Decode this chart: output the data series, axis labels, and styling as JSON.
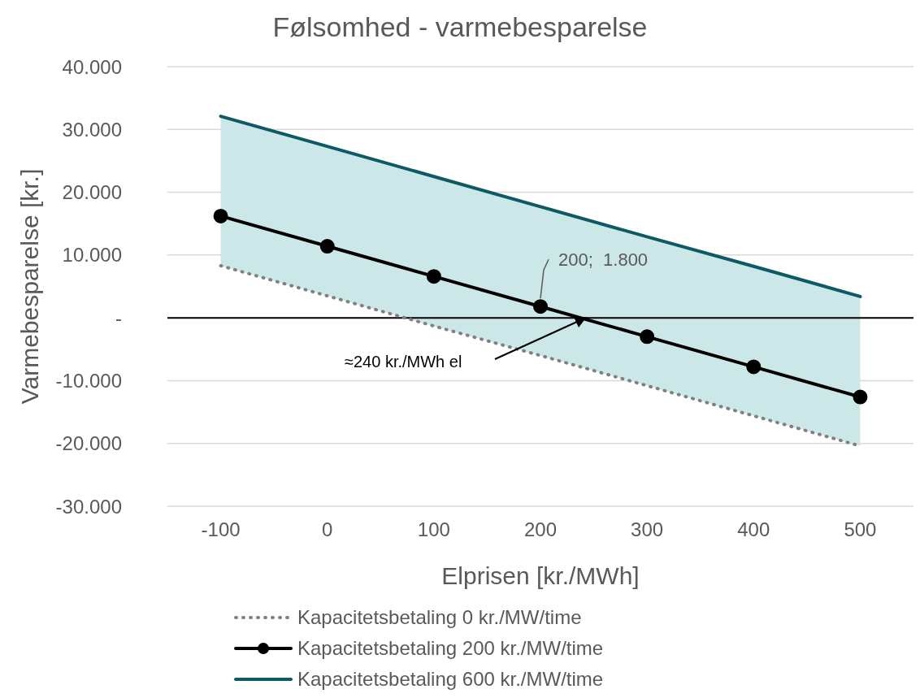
{
  "chart_data": {
    "type": "line",
    "title": "Følsomhed - varmebesparelse",
    "xlabel": "Elprisen [kr./MWh]",
    "ylabel": "Varmebesparelse [kr.]",
    "categories": [
      "-100",
      "0",
      "100",
      "200",
      "300",
      "400",
      "500"
    ],
    "series": [
      {
        "name": "Kapacitetsbetaling 0 kr./MW/time",
        "color": "#808080",
        "line_style": "dotted",
        "marker": "none",
        "values": [
          8300,
          3500,
          -1300,
          -6000,
          -10800,
          -15600,
          -20400
        ]
      },
      {
        "name": "Kapacitetsbetaling 200 kr./MW/time",
        "color": "#000000",
        "line_style": "solid",
        "marker": "circle",
        "values": [
          16200,
          11400,
          6600,
          1800,
          -3000,
          -7800,
          -12600
        ],
        "lower": [
          8300,
          3500,
          -1300,
          -6000,
          -10800,
          -15600,
          -20400
        ],
        "upper": [
          32100,
          27300,
          22500,
          17700,
          12900,
          8200,
          3400
        ]
      },
      {
        "name": "Kapacitetsbetaling 600 kr./MW/time",
        "color": "#0e5a64",
        "line_style": "solid",
        "marker": "none",
        "values": [
          32100,
          27300,
          22500,
          17700,
          12900,
          8200,
          3400
        ]
      }
    ],
    "ylim": [
      -30000,
      40000
    ],
    "yticks": [
      {
        "value": -30000,
        "label": "-30.000"
      },
      {
        "value": -20000,
        "label": "-20.000"
      },
      {
        "value": -10000,
        "label": "-10.000"
      },
      {
        "value": 0,
        "label": "-"
      },
      {
        "value": 10000,
        "label": "10.000"
      },
      {
        "value": 20000,
        "label": "20.000"
      },
      {
        "value": 30000,
        "label": "30.000"
      },
      {
        "value": 40000,
        "label": "40.000"
      }
    ],
    "grid": "y",
    "legend": "bottom",
    "annotations": [
      {
        "text": "200;  1.800",
        "x": "200",
        "y": 1800
      },
      "≈240 kr./MWh el"
    ]
  }
}
